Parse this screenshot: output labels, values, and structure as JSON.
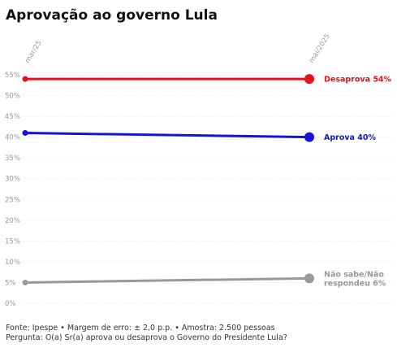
{
  "chart_data": {
    "type": "line",
    "title": "Aprovação ao governo Lula",
    "x": [
      "mar/25",
      "mai/2025"
    ],
    "yticks": [
      "0%",
      "5%",
      "10%",
      "15%",
      "20%",
      "25%",
      "30%",
      "35%",
      "40%",
      "45%",
      "50%",
      "55%"
    ],
    "ylim": [
      0,
      55
    ],
    "grid": true,
    "series": [
      {
        "name": "Desaprova",
        "label": "Desaprova 54%",
        "label_line2": "",
        "values": [
          54,
          54
        ],
        "color": "#e3121b"
      },
      {
        "name": "Aprova",
        "label": "Aprova 40%",
        "label_line2": "",
        "values": [
          41,
          40
        ],
        "color": "#1414d9"
      },
      {
        "name": "Não sabe/Não respondeu",
        "label": "Não sabe/Não",
        "label_line2": "respondeu 6%",
        "values": [
          5,
          6
        ],
        "color": "#999999"
      }
    ]
  },
  "footer": {
    "source": "Fonte: Ipespe • Margem de erro: ± 2,0 p.p. • Amostra: 2.500 pessoas",
    "question": "Pergunta: O(a) Sr(a) aprova ou desaprova o Governo do Presidente Lula?"
  }
}
